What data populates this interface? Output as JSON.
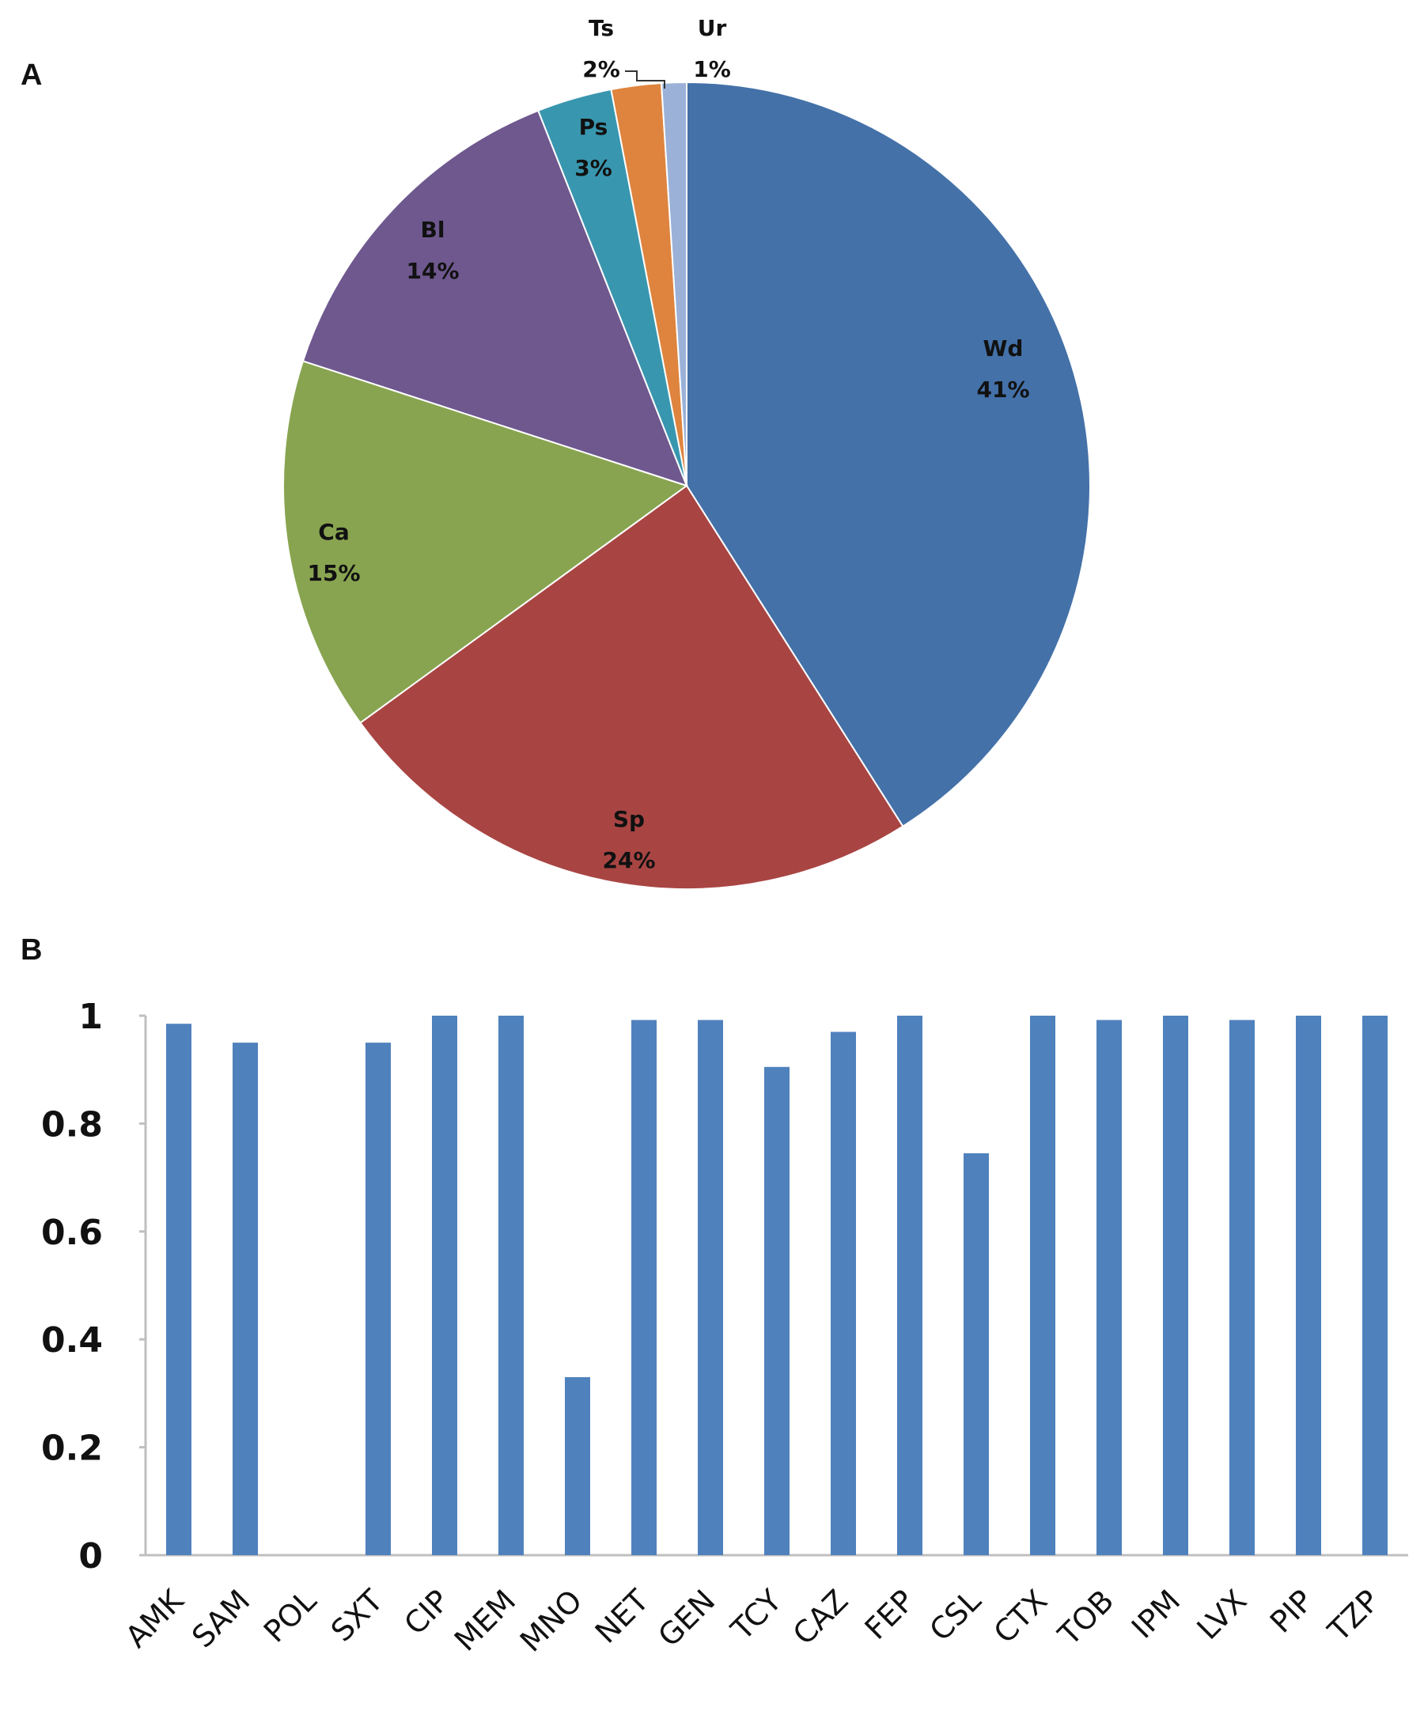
{
  "panels": {
    "a_label": "A",
    "b_label": "B"
  },
  "colors": {
    "bar": "#4f81bd",
    "axis": "#bfbfbf"
  },
  "chart_data": [
    {
      "type": "pie",
      "title": "",
      "slices": [
        {
          "name": "Wd",
          "label": "41%",
          "value": 41,
          "color": "#4471a8"
        },
        {
          "name": "Sp",
          "label": "24%",
          "value": 24,
          "color": "#a84543"
        },
        {
          "name": "Ca",
          "label": "15%",
          "value": 15,
          "color": "#88a450"
        },
        {
          "name": "Bl",
          "label": "14%",
          "value": 14,
          "color": "#6e588e"
        },
        {
          "name": "Ps",
          "label": "3%",
          "value": 3,
          "color": "#3996af"
        },
        {
          "name": "Ts",
          "label": "2%",
          "value": 2,
          "color": "#de843e"
        },
        {
          "name": "Ur",
          "label": "1%",
          "value": 1,
          "color": "#9bb1d8"
        }
      ],
      "start": "12 o'clock",
      "direction": "clockwise"
    },
    {
      "type": "bar",
      "title": "",
      "xlabel": "",
      "ylabel": "",
      "ylim": [
        0,
        1
      ],
      "yticks": [
        0,
        0.2,
        0.4,
        0.6,
        0.8,
        1
      ],
      "yticklabels": [
        "0",
        "0.2",
        "0.4",
        "0.6",
        "0.8",
        "1"
      ],
      "grid": false,
      "categories": [
        "AMK",
        "SAM",
        "POL",
        "SXT",
        "CIP",
        "MEM",
        "MNO",
        "NET",
        "GEN",
        "TCY",
        "CAZ",
        "FEP",
        "CSL",
        "CTX",
        "TOB",
        "IPM",
        "LVX",
        "PIP",
        "TZP"
      ],
      "values": [
        0.985,
        0.95,
        0,
        0.95,
        1.0,
        1.0,
        0.33,
        0.992,
        0.992,
        0.905,
        0.97,
        1.0,
        0.745,
        1.0,
        0.992,
        1.0,
        0.992,
        1.0,
        1.0
      ]
    }
  ]
}
